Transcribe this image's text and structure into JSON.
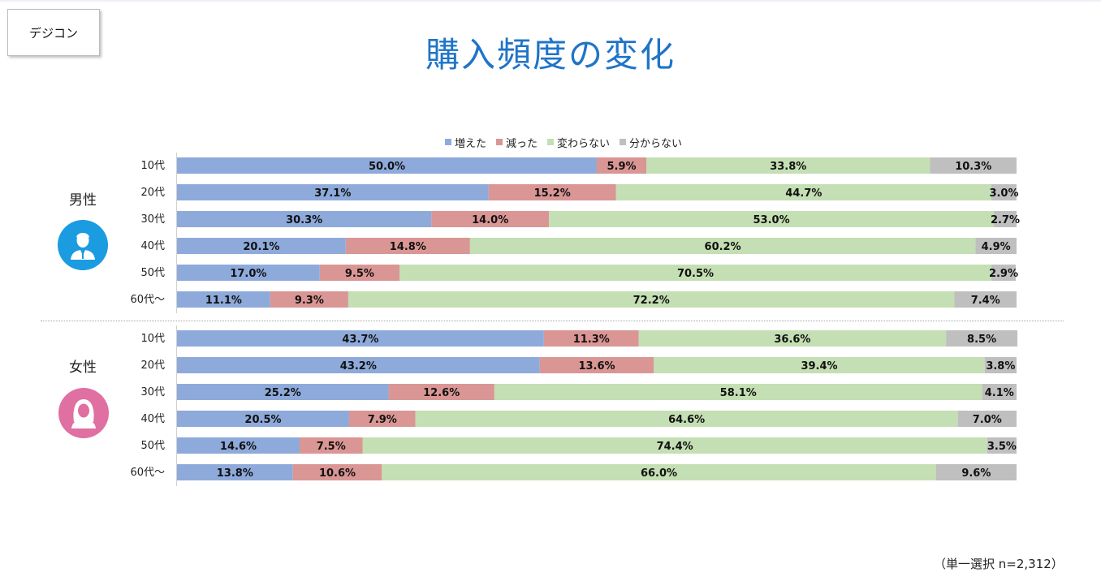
{
  "brand": "デジコン",
  "title": "購入頻度の変化",
  "footer_note": "（単一選択 n=2,312）",
  "colors": {
    "title": "#1f74c8",
    "series": [
      "#8eaadb",
      "#da9694",
      "#c4dfb3",
      "#bfbfbf"
    ],
    "male_avatar": "#1b9be0",
    "female_avatar": "#e06fa2"
  },
  "chart_data": {
    "type": "bar",
    "orientation": "horizontal-stacked-100",
    "series_names": [
      "増えた",
      "減った",
      "変わらない",
      "分からない"
    ],
    "groups": [
      {
        "label": "男性",
        "icon": "male-user-icon",
        "categories": [
          "10代",
          "20代",
          "30代",
          "40代",
          "50代",
          "60代～"
        ],
        "series": [
          {
            "name": "増えた",
            "values": [
              50.0,
              37.1,
              30.3,
              20.1,
              17.0,
              11.1
            ]
          },
          {
            "name": "減った",
            "values": [
              5.9,
              15.2,
              14.0,
              14.8,
              9.5,
              9.3
            ]
          },
          {
            "name": "変わらない",
            "values": [
              33.8,
              44.7,
              53.0,
              60.2,
              70.5,
              72.2
            ]
          },
          {
            "name": "分からない",
            "values": [
              10.3,
              3.0,
              2.7,
              4.9,
              2.9,
              7.4
            ]
          }
        ]
      },
      {
        "label": "女性",
        "icon": "female-user-icon",
        "categories": [
          "10代",
          "20代",
          "30代",
          "40代",
          "50代",
          "60代～"
        ],
        "series": [
          {
            "name": "増えた",
            "values": [
              43.7,
              43.2,
              25.2,
              20.5,
              14.6,
              13.8
            ]
          },
          {
            "name": "減った",
            "values": [
              11.3,
              13.6,
              12.6,
              7.9,
              7.5,
              10.6
            ]
          },
          {
            "name": "変わらない",
            "values": [
              36.6,
              39.4,
              58.1,
              64.6,
              74.4,
              66.0
            ]
          },
          {
            "name": "分からない",
            "values": [
              8.5,
              3.8,
              4.1,
              7.0,
              3.5,
              9.6
            ]
          }
        ]
      }
    ],
    "value_format": "percent-1dp",
    "xlim": [
      0,
      100
    ],
    "legend_position": "top-center"
  }
}
